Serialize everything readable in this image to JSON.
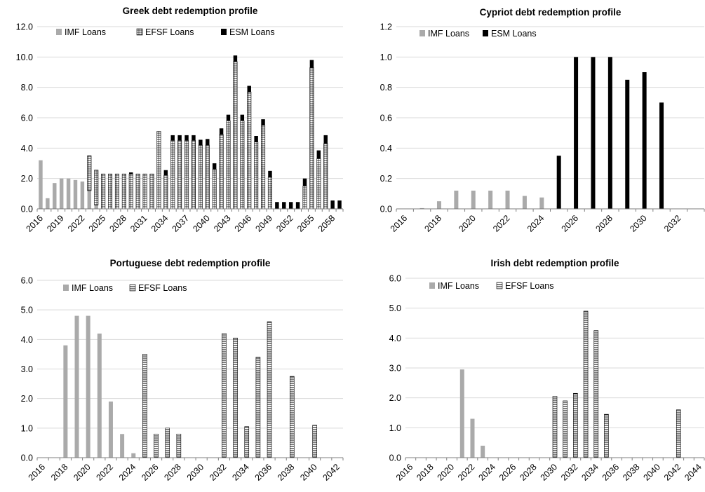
{
  "colors": {
    "imf": "#aaaaaa",
    "esm": "#000000",
    "efsf_fill": "#ffffff",
    "efsf_stroke": "#000000",
    "axis": "#7f7f7f",
    "grid": "#d9d9d9"
  },
  "chart_data": [
    {
      "type": "bar",
      "stacked": true,
      "title": "Greek debt redemption profile",
      "xlabel": "",
      "ylabel": "",
      "ylim": [
        0,
        12
      ],
      "yticks": [
        "0.0",
        "2.0",
        "4.0",
        "6.0",
        "8.0",
        "10.0",
        "12.0"
      ],
      "x": [
        2016,
        2017,
        2018,
        2019,
        2020,
        2021,
        2022,
        2023,
        2024,
        2025,
        2026,
        2027,
        2028,
        2029,
        2030,
        2031,
        2032,
        2033,
        2034,
        2035,
        2036,
        2037,
        2038,
        2039,
        2040,
        2041,
        2042,
        2043,
        2044,
        2045,
        2046,
        2047,
        2048,
        2049,
        2050,
        2051,
        2052,
        2053,
        2054,
        2055,
        2056,
        2057,
        2058,
        2059
      ],
      "xtick_labels": [
        "2016",
        "2019",
        "2022",
        "2025",
        "2028",
        "2031",
        "2034",
        "2037",
        "2040",
        "2043",
        "2046",
        "2049",
        "2052",
        "2055",
        "2058"
      ],
      "legend": [
        "IMF Loans",
        "EFSF Loans",
        "ESM Loans"
      ],
      "legend_placement": "top",
      "series": [
        {
          "name": "IMF Loans",
          "values": [
            3.2,
            0.7,
            1.7,
            2.0,
            2.0,
            1.9,
            1.8,
            1.2,
            0.25,
            0,
            0,
            0,
            0,
            0,
            0,
            0,
            0,
            0,
            0,
            0,
            0,
            0,
            0,
            0,
            0,
            0,
            0,
            0,
            0,
            0,
            0,
            0,
            0,
            0,
            0,
            0,
            0,
            0,
            0,
            0,
            0,
            0,
            0,
            0
          ]
        },
        {
          "name": "EFSF Loans",
          "values": [
            0,
            0,
            0,
            0,
            0,
            0,
            0,
            2.3,
            2.3,
            2.3,
            2.3,
            2.3,
            2.3,
            2.3,
            2.3,
            2.3,
            2.3,
            5.1,
            2.2,
            4.5,
            4.5,
            4.5,
            4.5,
            4.2,
            4.2,
            2.6,
            4.9,
            5.8,
            9.7,
            5.8,
            7.7,
            4.4,
            5.5,
            2.1,
            0,
            0,
            0,
            0,
            1.5,
            9.3,
            3.3,
            4.3,
            0,
            0
          ]
        },
        {
          "name": "ESM Loans",
          "values": [
            0,
            0,
            0,
            0,
            0,
            0,
            0,
            0,
            0,
            0,
            0,
            0,
            0,
            0.1,
            0,
            0,
            0,
            0,
            0.35,
            0.35,
            0.35,
            0.35,
            0.35,
            0.35,
            0.4,
            0.4,
            0.4,
            0.4,
            0.4,
            0.4,
            0.4,
            0.4,
            0.4,
            0.4,
            0.45,
            0.45,
            0.45,
            0.45,
            0.5,
            0.5,
            0.55,
            0.55,
            0.55,
            0.55
          ]
        }
      ]
    },
    {
      "type": "bar",
      "stacked": false,
      "title": "Cypriot debt redemption profile",
      "xlabel": "",
      "ylabel": "",
      "ylim": [
        0,
        1.2
      ],
      "yticks": [
        "0.0",
        "0.2",
        "0.4",
        "0.6",
        "0.8",
        "1.0",
        "1.2"
      ],
      "x": [
        2016,
        2017,
        2018,
        2019,
        2020,
        2021,
        2022,
        2023,
        2024,
        2025,
        2026,
        2027,
        2028,
        2029,
        2030,
        2031,
        2032,
        2033
      ],
      "xtick_labels": [
        "2016",
        "2018",
        "2020",
        "2022",
        "2024",
        "2026",
        "2028",
        "2030",
        "2032"
      ],
      "legend": [
        "IMF Loans",
        "ESM Loans"
      ],
      "legend_placement": "top",
      "series": [
        {
          "name": "IMF Loans",
          "values": [
            0,
            0.005,
            0.05,
            0.12,
            0.12,
            0.12,
            0.12,
            0.085,
            0.075,
            0.02,
            0,
            0,
            0,
            0,
            0,
            0,
            0,
            0
          ]
        },
        {
          "name": "ESM Loans",
          "values": [
            0,
            0,
            0,
            0,
            0,
            0,
            0,
            0,
            0,
            0.35,
            1.0,
            1.0,
            1.0,
            0.85,
            0.9,
            0.7,
            0,
            0
          ]
        }
      ]
    },
    {
      "type": "bar",
      "stacked": false,
      "title": "Portuguese debt redemption profile",
      "xlabel": "",
      "ylabel": "",
      "ylim": [
        0,
        6
      ],
      "yticks": [
        "0.0",
        "1.0",
        "2.0",
        "3.0",
        "4.0",
        "5.0",
        "6.0"
      ],
      "x": [
        2016,
        2017,
        2018,
        2019,
        2020,
        2021,
        2022,
        2023,
        2024,
        2025,
        2026,
        2027,
        2028,
        2029,
        2030,
        2031,
        2032,
        2033,
        2034,
        2035,
        2036,
        2037,
        2038,
        2039,
        2040,
        2041,
        2042
      ],
      "xtick_labels": [
        "2016",
        "2018",
        "2020",
        "2022",
        "2024",
        "2026",
        "2028",
        "2030",
        "2032",
        "2034",
        "2036",
        "2038",
        "2040",
        "2042"
      ],
      "legend": [
        "IMF Loans",
        "EFSF Loans"
      ],
      "legend_placement": "top",
      "series": [
        {
          "name": "IMF Loans",
          "values": [
            0,
            0,
            3.8,
            4.8,
            4.8,
            4.2,
            1.9,
            0.8,
            0.15,
            0,
            0,
            0,
            0,
            0,
            0,
            0,
            0,
            0,
            0,
            0,
            0,
            0,
            0,
            0,
            0,
            0,
            0
          ]
        },
        {
          "name": "EFSF Loans",
          "values": [
            0,
            0,
            0,
            0,
            0,
            0,
            0,
            0,
            0,
            3.5,
            0.8,
            1.0,
            0.8,
            0,
            0,
            0,
            4.2,
            4.05,
            1.05,
            3.4,
            4.6,
            0,
            2.75,
            0,
            1.1,
            0,
            0
          ]
        }
      ]
    },
    {
      "type": "bar",
      "stacked": false,
      "title": "Irish debt redemption profile",
      "xlabel": "",
      "ylabel": "",
      "ylim": [
        0,
        6
      ],
      "yticks": [
        "0.0",
        "1.0",
        "2.0",
        "3.0",
        "4.0",
        "5.0",
        "6.0"
      ],
      "x": [
        2016,
        2017,
        2018,
        2019,
        2020,
        2021,
        2022,
        2023,
        2024,
        2025,
        2026,
        2027,
        2028,
        2029,
        2030,
        2031,
        2032,
        2033,
        2034,
        2035,
        2036,
        2037,
        2038,
        2039,
        2040,
        2041,
        2042,
        2043,
        2044
      ],
      "xtick_labels": [
        "2016",
        "2018",
        "2020",
        "2022",
        "2024",
        "2026",
        "2028",
        "2030",
        "2032",
        "2034",
        "2036",
        "2038",
        "2040",
        "2042",
        "2044"
      ],
      "legend": [
        "IMF Loans",
        "EFSF Loans"
      ],
      "legend_placement": "top",
      "series": [
        {
          "name": "IMF Loans",
          "values": [
            0,
            0,
            0,
            0,
            0,
            2.95,
            1.3,
            0.4,
            0,
            0,
            0,
            0,
            0,
            0,
            0,
            0,
            0,
            0,
            0,
            0,
            0,
            0,
            0,
            0,
            0,
            0,
            0,
            0,
            0
          ]
        },
        {
          "name": "EFSF Loans",
          "values": [
            0,
            0,
            0,
            0,
            0,
            0,
            0,
            0,
            0,
            0,
            0,
            0,
            0,
            0,
            2.05,
            1.9,
            2.15,
            4.9,
            4.25,
            1.45,
            0,
            0,
            0,
            0,
            0,
            0,
            1.6,
            0,
            0
          ]
        }
      ]
    }
  ]
}
